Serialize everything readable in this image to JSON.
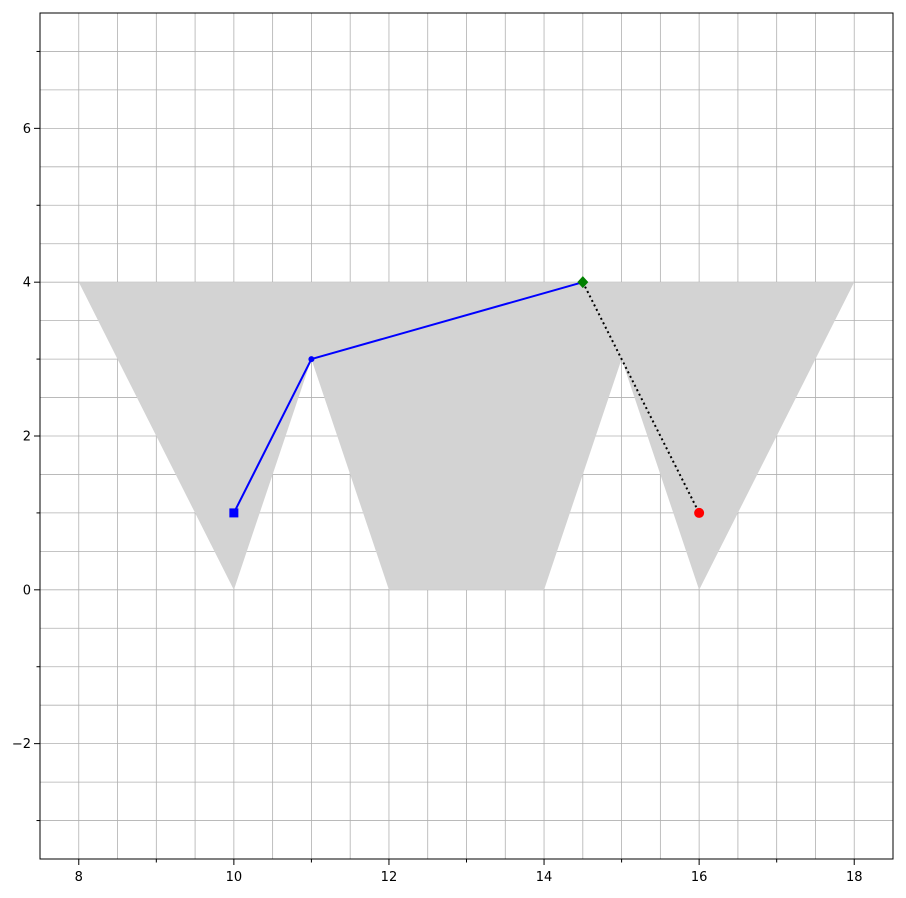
{
  "chart_data": {
    "type": "line",
    "title": "",
    "xlabel": "",
    "ylabel": "",
    "xlim": [
      7.5,
      18.5
    ],
    "ylim": [
      -3.5,
      7.5
    ],
    "x_ticks": [
      8,
      10,
      12,
      14,
      16,
      18
    ],
    "x_tick_labels": [
      "8",
      "10",
      "12",
      "14",
      "16",
      "18"
    ],
    "y_ticks": [
      -2,
      0,
      2,
      4,
      6
    ],
    "y_tick_labels": [
      "−2",
      "0",
      "2",
      "4",
      "6"
    ],
    "grid": true,
    "grid_minor_step": 0.5,
    "shaded_region": {
      "color": "#d3d3d3",
      "vertices": [
        [
          8,
          4
        ],
        [
          18,
          4
        ],
        [
          16,
          0
        ],
        [
          15,
          3
        ],
        [
          14,
          0
        ],
        [
          12,
          0
        ],
        [
          11,
          3
        ],
        [
          10,
          0
        ]
      ]
    },
    "series": [
      {
        "color": "#0000ff",
        "style": "solid",
        "x": [
          10,
          11,
          14.5
        ],
        "y": [
          1,
          3,
          4
        ]
      },
      {
        "color": "#000000",
        "style": "dotted",
        "x": [
          14.5,
          16
        ],
        "y": [
          4,
          1
        ]
      }
    ],
    "markers": [
      {
        "x": 10,
        "y": 1,
        "shape": "square",
        "color": "#0000ff"
      },
      {
        "x": 11,
        "y": 3,
        "shape": "dot",
        "color": "#0000ff"
      },
      {
        "x": 14.5,
        "y": 4,
        "shape": "diamond",
        "color": "#008000"
      },
      {
        "x": 16,
        "y": 1,
        "shape": "circle",
        "color": "#ff0000"
      }
    ]
  }
}
